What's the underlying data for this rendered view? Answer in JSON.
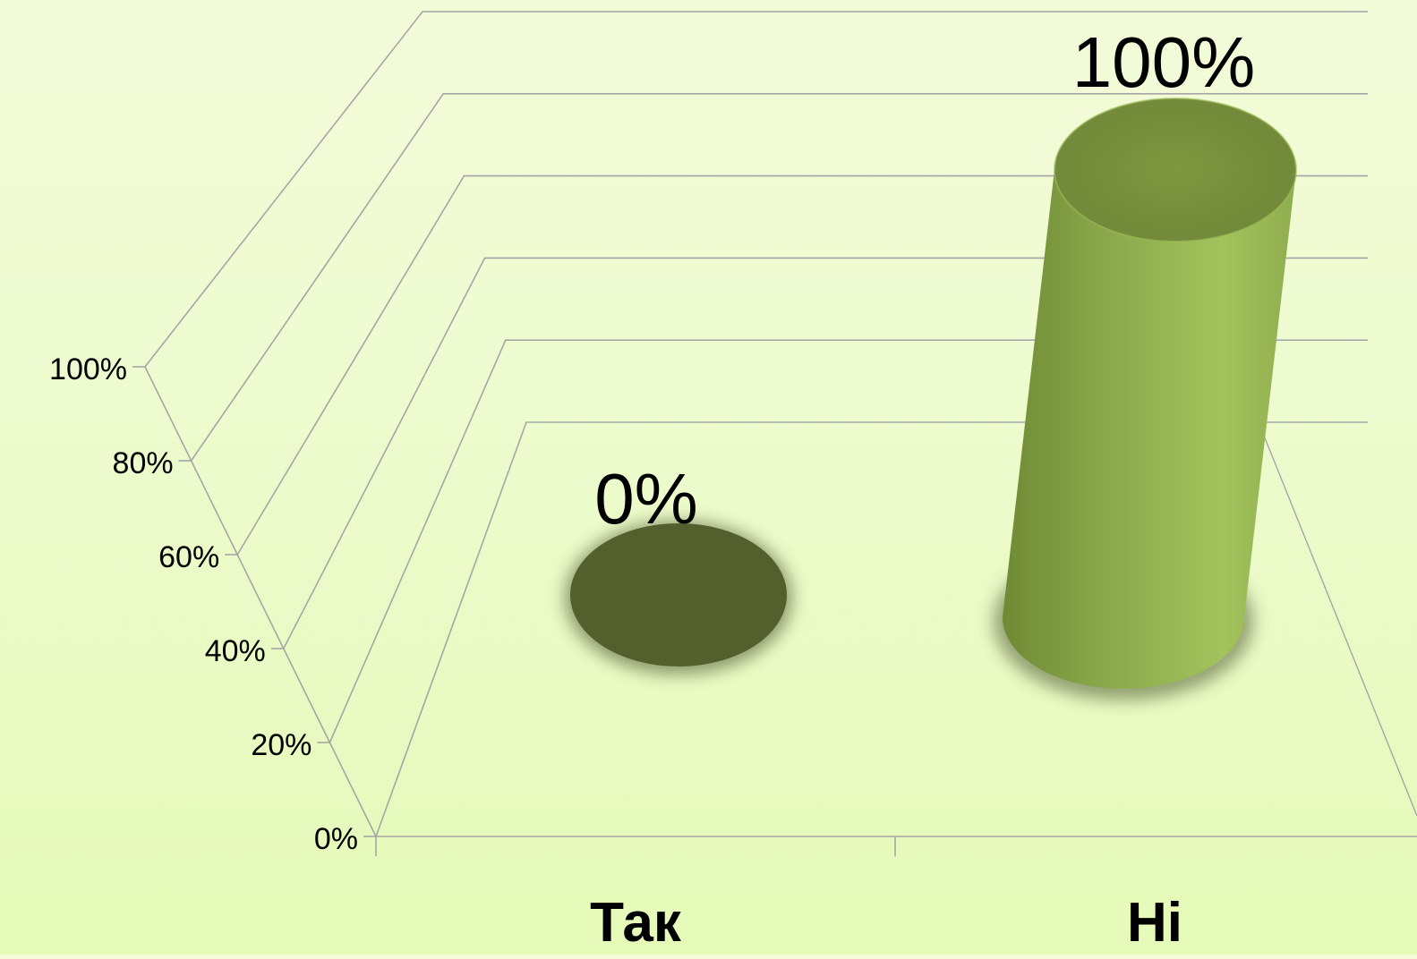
{
  "chart_data": {
    "type": "bar",
    "style": "3d-cylinder",
    "categories": [
      "Так",
      "Ні"
    ],
    "values": [
      0,
      100
    ],
    "data_labels": [
      "0%",
      "100%"
    ],
    "yticks": [
      "0%",
      "20%",
      "40%",
      "60%",
      "80%",
      "100%"
    ],
    "ylim": [
      0,
      100
    ],
    "grid": true,
    "legend": "none",
    "colors": {
      "bar": "#8aa84b",
      "bar_top": "#7a9340",
      "bar_empty": "#53602e",
      "grid": "#a6a6a6",
      "text": "#000000"
    }
  }
}
